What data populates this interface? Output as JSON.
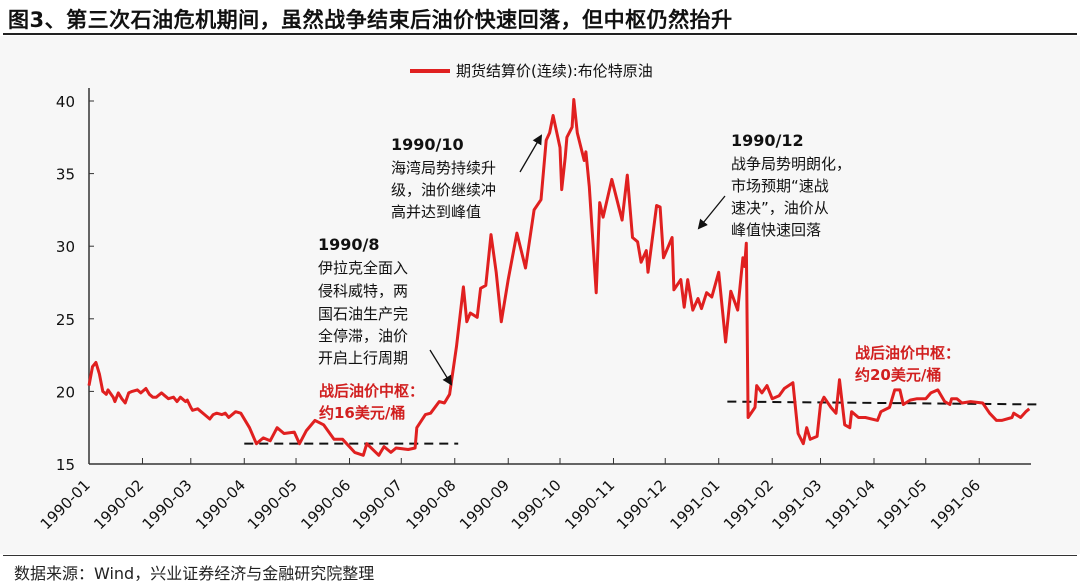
{
  "title": "图3、第三次石油危机期间，虽然战争结束后油价快速回落，但中枢仍然抬升",
  "source": "数据来源：Wind，兴业证券经济与金融研究院整理",
  "colors": {
    "series": "#e02020",
    "reference": "#111111",
    "highlight_text": "#d11f1f"
  },
  "annotations": [
    {
      "heading": "1990/8",
      "lines": [
        "伊拉克全面入",
        "侵科威特，两",
        "国石油生产完",
        "全停滞，油价",
        "开启上行周期"
      ]
    },
    {
      "heading": "1990/10",
      "lines": [
        "海湾局势持续升",
        "级，油价继续冲",
        "高并达到峰值"
      ]
    },
    {
      "heading": "1990/12",
      "lines": [
        "战争局势明朗化，",
        "市场预期“速战",
        "速决”，油价从",
        "峰值快速回落"
      ]
    },
    {
      "lines": [
        "战后油价中枢：",
        "约16美元/桶"
      ]
    },
    {
      "lines": [
        "战后油价中枢：",
        "约20美元/桶"
      ]
    }
  ],
  "chart_data": {
    "type": "line",
    "title": "",
    "xlabel": "",
    "ylabel": "",
    "ylim": [
      15,
      40
    ],
    "yticks": [
      15,
      20,
      25,
      30,
      35,
      40
    ],
    "xlim": [
      "1990-01-01",
      "1991-07-01"
    ],
    "xticks": [
      "1990-01",
      "1990-02",
      "1990-03",
      "1990-04",
      "1990-05",
      "1990-06",
      "1990-07",
      "1990-08",
      "1990-09",
      "1990-10",
      "1990-11",
      "1990-12",
      "1991-01",
      "1991-02",
      "1991-03",
      "1991-04",
      "1991-05",
      "1991-06"
    ],
    "grid": false,
    "legend": "top-center",
    "series": [
      {
        "name": "期货结算价(连续):布伦特原油",
        "points": [
          [
            "1990-01-01",
            20.4
          ],
          [
            "1990-01-03",
            21.7
          ],
          [
            "1990-01-05",
            22.0
          ],
          [
            "1990-01-07",
            21.2
          ],
          [
            "1990-01-09",
            20.0
          ],
          [
            "1990-01-11",
            19.8
          ],
          [
            "1990-01-12",
            20.1
          ],
          [
            "1990-01-15",
            19.6
          ],
          [
            "1990-01-16",
            19.3
          ],
          [
            "1990-01-18",
            19.9
          ],
          [
            "1990-01-20",
            19.5
          ],
          [
            "1990-01-22",
            19.2
          ],
          [
            "1990-01-24",
            19.9
          ],
          [
            "1990-01-26",
            20.0
          ],
          [
            "1990-01-29",
            20.1
          ],
          [
            "1990-01-31",
            19.9
          ],
          [
            "1990-02-03",
            20.2
          ],
          [
            "1990-02-05",
            19.8
          ],
          [
            "1990-02-07",
            19.6
          ],
          [
            "1990-02-09",
            19.6
          ],
          [
            "1990-02-12",
            19.9
          ],
          [
            "1990-02-14",
            19.7
          ],
          [
            "1990-02-16",
            19.5
          ],
          [
            "1990-02-19",
            19.6
          ],
          [
            "1990-02-21",
            19.3
          ],
          [
            "1990-02-23",
            19.6
          ],
          [
            "1990-02-26",
            19.3
          ],
          [
            "1990-02-27",
            19.4
          ],
          [
            "1990-03-01",
            18.9
          ],
          [
            "1990-03-02",
            18.7
          ],
          [
            "1990-03-05",
            18.8
          ],
          [
            "1990-03-07",
            18.6
          ],
          [
            "1990-03-09",
            18.4
          ],
          [
            "1990-03-12",
            18.1
          ],
          [
            "1990-03-14",
            18.4
          ],
          [
            "1990-03-16",
            18.5
          ],
          [
            "1990-03-19",
            18.4
          ],
          [
            "1990-03-21",
            18.5
          ],
          [
            "1990-03-23",
            18.2
          ],
          [
            "1990-03-27",
            18.6
          ],
          [
            "1990-03-30",
            18.5
          ],
          [
            "1990-04-04",
            17.5
          ],
          [
            "1990-04-08",
            16.4
          ],
          [
            "1990-04-12",
            16.8
          ],
          [
            "1990-04-16",
            16.6
          ],
          [
            "1990-04-20",
            17.5
          ],
          [
            "1990-04-24",
            17.1
          ],
          [
            "1990-04-30",
            17.2
          ],
          [
            "1990-05-03",
            16.4
          ],
          [
            "1990-05-07",
            17.3
          ],
          [
            "1990-05-12",
            18.0
          ],
          [
            "1990-05-17",
            17.7
          ],
          [
            "1990-05-23",
            16.7
          ],
          [
            "1990-05-28",
            16.7
          ],
          [
            "1990-06-04",
            15.8
          ],
          [
            "1990-06-09",
            15.6
          ],
          [
            "1990-06-11",
            16.4
          ],
          [
            "1990-06-18",
            15.6
          ],
          [
            "1990-06-21",
            16.2
          ],
          [
            "1990-06-25",
            15.8
          ],
          [
            "1990-06-28",
            16.1
          ],
          [
            "1990-07-05",
            16.0
          ],
          [
            "1990-07-09",
            16.1
          ],
          [
            "1990-07-10",
            17.5
          ],
          [
            "1990-07-15",
            18.4
          ],
          [
            "1990-07-18",
            18.5
          ],
          [
            "1990-07-23",
            19.3
          ],
          [
            "1990-07-26",
            19.2
          ],
          [
            "1990-07-29",
            19.8
          ],
          [
            "1990-08-02",
            23.1
          ],
          [
            "1990-08-06",
            27.2
          ],
          [
            "1990-08-08",
            24.8
          ],
          [
            "1990-08-10",
            25.4
          ],
          [
            "1990-08-14",
            25.1
          ],
          [
            "1990-08-16",
            27.1
          ],
          [
            "1990-08-19",
            27.3
          ],
          [
            "1990-08-22",
            30.8
          ],
          [
            "1990-08-25",
            28.2
          ],
          [
            "1990-08-28",
            24.8
          ],
          [
            "1990-09-01",
            27.7
          ],
          [
            "1990-09-06",
            30.9
          ],
          [
            "1990-09-11",
            28.5
          ],
          [
            "1990-09-16",
            32.5
          ],
          [
            "1990-09-20",
            33.2
          ],
          [
            "1990-09-23",
            37.3
          ],
          [
            "1990-09-25",
            37.8
          ],
          [
            "1990-09-27",
            39.0
          ],
          [
            "1990-10-01",
            36.8
          ],
          [
            "1990-10-02",
            33.9
          ],
          [
            "1990-10-04",
            36.1
          ],
          [
            "1990-10-05",
            37.5
          ],
          [
            "1990-10-08",
            38.2
          ],
          [
            "1990-10-09",
            40.1
          ],
          [
            "1990-10-11",
            37.8
          ],
          [
            "1990-10-15",
            35.9
          ],
          [
            "1990-10-16",
            36.5
          ],
          [
            "1990-10-18",
            34.1
          ],
          [
            "1990-10-22",
            26.8
          ],
          [
            "1990-10-24",
            33.0
          ],
          [
            "1990-10-26",
            32.0
          ],
          [
            "1990-10-31",
            34.6
          ],
          [
            "1990-11-06",
            31.8
          ],
          [
            "1990-11-09",
            34.9
          ],
          [
            "1990-11-12",
            30.6
          ],
          [
            "1990-11-15",
            30.3
          ],
          [
            "1990-11-17",
            28.9
          ],
          [
            "1990-11-20",
            29.7
          ],
          [
            "1990-11-21",
            28.2
          ],
          [
            "1990-11-26",
            32.8
          ],
          [
            "1990-11-28",
            32.7
          ],
          [
            "1990-11-30",
            29.2
          ],
          [
            "1990-12-05",
            30.6
          ],
          [
            "1990-12-06",
            27.0
          ],
          [
            "1990-12-10",
            27.7
          ],
          [
            "1990-12-12",
            25.8
          ],
          [
            "1990-12-14",
            27.7
          ],
          [
            "1990-12-17",
            25.6
          ],
          [
            "1990-12-20",
            26.4
          ],
          [
            "1990-12-22",
            25.7
          ],
          [
            "1990-12-25",
            26.8
          ],
          [
            "1990-12-28",
            26.5
          ],
          [
            "1991-01-01",
            28.2
          ],
          [
            "1991-01-05",
            23.4
          ],
          [
            "1991-01-08",
            26.9
          ],
          [
            "1991-01-12",
            25.6
          ],
          [
            "1991-01-15",
            29.2
          ],
          [
            "1991-01-16",
            28.6
          ],
          [
            "1991-01-17",
            30.2
          ],
          [
            "1991-01-18",
            18.2
          ],
          [
            "1991-01-22",
            18.9
          ],
          [
            "1991-01-23",
            20.4
          ],
          [
            "1991-01-26",
            19.9
          ],
          [
            "1991-01-29",
            20.4
          ],
          [
            "1991-02-01",
            19.5
          ],
          [
            "1991-02-05",
            19.7
          ],
          [
            "1991-02-08",
            20.2
          ],
          [
            "1991-02-13",
            20.6
          ],
          [
            "1991-02-16",
            17.1
          ],
          [
            "1991-02-19",
            16.4
          ],
          [
            "1991-02-21",
            17.5
          ],
          [
            "1991-02-23",
            16.7
          ],
          [
            "1991-02-27",
            16.9
          ],
          [
            "1991-03-01",
            19.1
          ],
          [
            "1991-03-03",
            19.6
          ],
          [
            "1991-03-07",
            18.9
          ],
          [
            "1991-03-10",
            18.5
          ],
          [
            "1991-03-12",
            20.8
          ],
          [
            "1991-03-15",
            17.7
          ],
          [
            "1991-03-18",
            17.5
          ],
          [
            "1991-03-19",
            18.6
          ],
          [
            "1991-03-23",
            18.2
          ],
          [
            "1991-03-27",
            18.2
          ],
          [
            "1991-04-03",
            18.0
          ],
          [
            "1991-04-05",
            18.6
          ],
          [
            "1991-04-10",
            18.9
          ],
          [
            "1991-04-13",
            20.1
          ],
          [
            "1991-04-16",
            20.1
          ],
          [
            "1991-04-18",
            19.1
          ],
          [
            "1991-04-22",
            19.4
          ],
          [
            "1991-04-26",
            19.5
          ],
          [
            "1991-05-01",
            19.5
          ],
          [
            "1991-05-04",
            19.9
          ],
          [
            "1991-05-08",
            20.1
          ],
          [
            "1991-05-12",
            19.3
          ],
          [
            "1991-05-15",
            19.1
          ],
          [
            "1991-05-16",
            19.5
          ],
          [
            "1991-05-19",
            19.5
          ],
          [
            "1991-05-22",
            19.2
          ],
          [
            "1991-05-27",
            19.3
          ],
          [
            "1991-06-03",
            19.2
          ],
          [
            "1991-06-07",
            18.5
          ],
          [
            "1991-06-11",
            18.0
          ],
          [
            "1991-06-14",
            18.0
          ],
          [
            "1991-06-20",
            18.2
          ],
          [
            "1991-06-21",
            18.5
          ],
          [
            "1991-06-25",
            18.2
          ],
          [
            "1991-06-28",
            18.6
          ],
          [
            "1991-06-30",
            18.8
          ]
        ]
      }
    ],
    "reference_lines": [
      {
        "style": "dashed",
        "from": [
          "1990-04-01",
          16.4
        ],
        "to": [
          "1990-08-03",
          16.4
        ]
      },
      {
        "style": "dashed",
        "from": [
          "1991-01-06",
          19.3
        ],
        "to": [
          "1991-07-07",
          19.1
        ]
      }
    ]
  }
}
